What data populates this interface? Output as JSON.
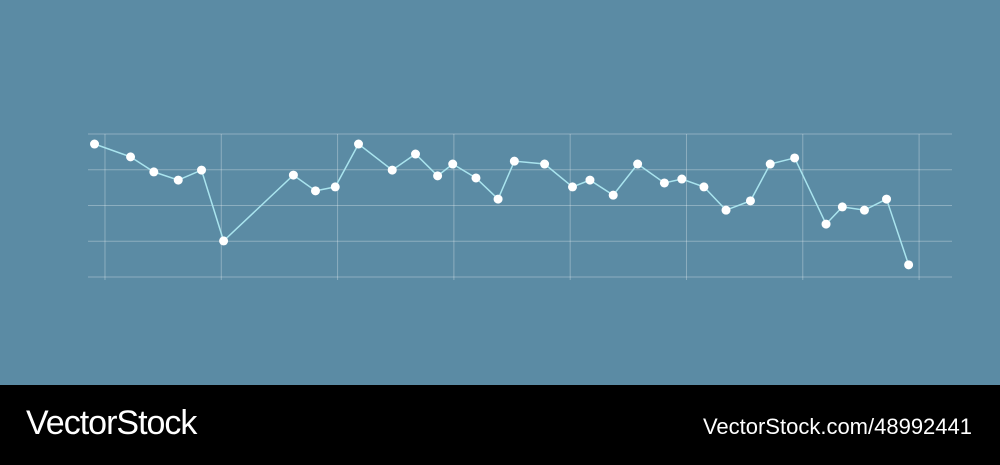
{
  "chart_data": {
    "type": "line",
    "x": [
      -0.09,
      0.22,
      0.42,
      0.63,
      0.83,
      1.02,
      1.62,
      1.81,
      1.98,
      2.18,
      2.47,
      2.67,
      2.86,
      2.99,
      3.19,
      3.38,
      3.52,
      3.78,
      4.02,
      4.17,
      4.37,
      4.58,
      4.81,
      4.96,
      5.15,
      5.34,
      5.55,
      5.72,
      5.93,
      6.2,
      6.34,
      6.53,
      6.72,
      6.91
    ],
    "series": [
      {
        "color": "#a9e4ee",
        "marker_color": "#ffffff",
        "values": [
          3.72,
          3.36,
          2.94,
          2.71,
          2.99,
          1.01,
          2.85,
          2.41,
          2.52,
          3.72,
          2.99,
          3.44,
          2.83,
          3.16,
          2.77,
          2.18,
          3.24,
          3.16,
          2.52,
          2.71,
          2.29,
          3.16,
          2.63,
          2.74,
          2.52,
          1.87,
          2.13,
          3.16,
          3.33,
          1.48,
          1.96,
          1.87,
          2.18,
          0.34
        ]
      }
    ],
    "xlim": [
      -0.146,
      7.283
    ],
    "xticks": [
      0,
      1,
      2,
      3,
      4,
      5,
      6,
      7
    ],
    "ylim": [
      0,
      4
    ],
    "yticks": [
      0,
      1,
      2,
      3,
      4
    ],
    "grid": true
  },
  "footer": {
    "brand": "VectorStock",
    "id": "VectorStock.com/48992441"
  }
}
